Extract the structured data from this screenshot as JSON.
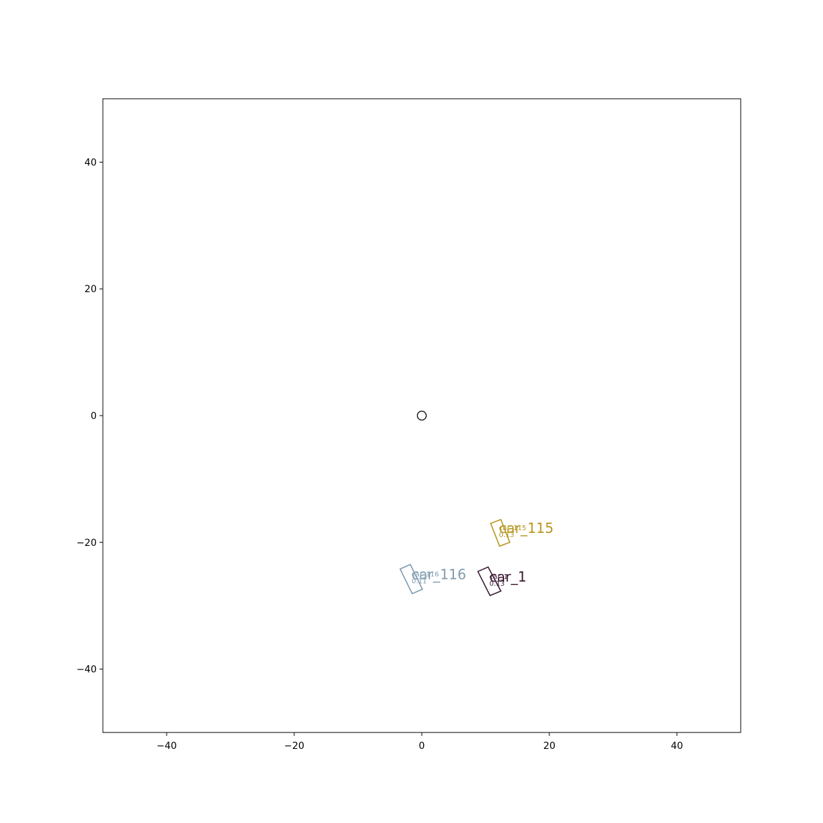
{
  "chart_data": {
    "type": "scatter",
    "title": "",
    "xlabel": "",
    "ylabel": "",
    "xlim": [
      -50,
      50
    ],
    "ylim": [
      -50,
      50
    ],
    "grid": false,
    "x_ticks": [
      {
        "value": -40,
        "label": "−40"
      },
      {
        "value": -20,
        "label": "−20"
      },
      {
        "value": 0,
        "label": "0"
      },
      {
        "value": 20,
        "label": "20"
      },
      {
        "value": 40,
        "label": "40"
      }
    ],
    "y_ticks": [
      {
        "value": 40,
        "label": "40"
      },
      {
        "value": 20,
        "label": "20"
      },
      {
        "value": 0,
        "label": "0"
      },
      {
        "value": -20,
        "label": "−20"
      },
      {
        "value": -40,
        "label": "−40"
      }
    ],
    "ego_marker": {
      "x": 0,
      "y": 0,
      "color": "#000000"
    },
    "objects": [
      {
        "label": "car_115",
        "small_label": "car_115",
        "score": "0.13",
        "color": "#b8961f",
        "center": [
          12.1,
          -18.5
        ],
        "corners": [
          [
            10.8,
            -17.0
          ],
          [
            12.4,
            -16.4
          ],
          [
            13.8,
            -20.0
          ],
          [
            12.2,
            -20.6
          ]
        ]
      },
      {
        "label": "car_116",
        "small_label": "car_116",
        "score": "0.11",
        "color": "#7f9bb0",
        "center": [
          -1.6,
          -25.8
        ],
        "corners": [
          [
            -3.4,
            -24.2
          ],
          [
            -1.8,
            -23.5
          ],
          [
            0.1,
            -27.4
          ],
          [
            -1.5,
            -28.1
          ]
        ]
      },
      {
        "label": "car_1",
        "small_label": "car_1",
        "score": "0.13",
        "color": "#3a1a33",
        "center": [
          10.6,
          -26.2
        ],
        "corners": [
          [
            8.8,
            -24.6
          ],
          [
            10.4,
            -23.9
          ],
          [
            12.4,
            -27.7
          ],
          [
            10.7,
            -28.4
          ]
        ]
      }
    ]
  }
}
